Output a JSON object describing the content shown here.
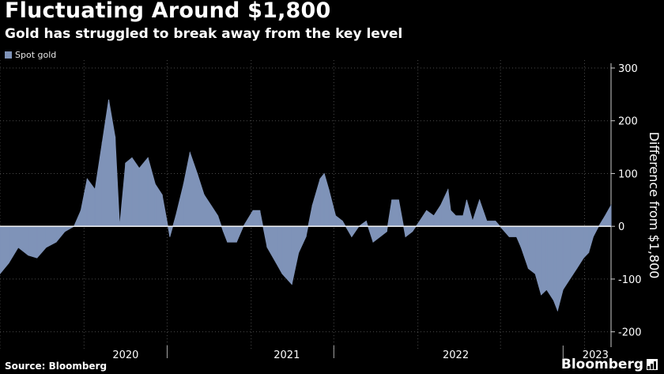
{
  "title": "Fluctuating Around $1,800",
  "subtitle": "Gold has struggled to break away from the key level",
  "source": "Source: Bloomberg",
  "brand": "Bloomberg",
  "colors": {
    "series": "#7f93b8",
    "background": "#000000",
    "grid": "#4a4a4a",
    "text": "#ffffff"
  },
  "chart_data": {
    "type": "area",
    "title": "Fluctuating Around $1,800",
    "subtitle": "Gold has struggled to break away from the key level",
    "ylabel": "Difference from $1,800",
    "ylim": [
      -220,
      300
    ],
    "yticks": [
      300,
      200,
      100,
      0,
      -100,
      -200
    ],
    "xlim": [
      "2019-07-01",
      "2023-02-28"
    ],
    "xtick_labels": [
      "2020",
      "2021",
      "2022",
      "2023"
    ],
    "legend": "top-left",
    "grid": true,
    "series": [
      {
        "name": "Spot gold",
        "points": [
          [
            "2019-07-01",
            -90
          ],
          [
            "2019-07-20",
            -70
          ],
          [
            "2019-08-10",
            -40
          ],
          [
            "2019-09-01",
            -55
          ],
          [
            "2019-09-20",
            -60
          ],
          [
            "2019-10-10",
            -40
          ],
          [
            "2019-11-01",
            -30
          ],
          [
            "2019-11-20",
            -10
          ],
          [
            "2019-12-10",
            0
          ],
          [
            "2019-12-25",
            30
          ],
          [
            "2020-01-08",
            90
          ],
          [
            "2020-01-25",
            70
          ],
          [
            "2020-02-10",
            160
          ],
          [
            "2020-02-24",
            240
          ],
          [
            "2020-03-09",
            170
          ],
          [
            "2020-03-19",
            0
          ],
          [
            "2020-04-01",
            120
          ],
          [
            "2020-04-15",
            130
          ],
          [
            "2020-05-01",
            110
          ],
          [
            "2020-05-20",
            130
          ],
          [
            "2020-06-05",
            80
          ],
          [
            "2020-06-20",
            60
          ],
          [
            "2020-07-07",
            -20
          ],
          [
            "2020-07-20",
            20
          ],
          [
            "2020-08-06",
            80
          ],
          [
            "2020-08-20",
            140
          ],
          [
            "2020-09-05",
            100
          ],
          [
            "2020-09-20",
            60
          ],
          [
            "2020-10-05",
            40
          ],
          [
            "2020-10-20",
            20
          ],
          [
            "2020-11-01",
            -10
          ],
          [
            "2020-11-10",
            -30
          ],
          [
            "2020-11-30",
            -30
          ],
          [
            "2020-12-15",
            0
          ],
          [
            "2021-01-05",
            30
          ],
          [
            "2021-01-20",
            30
          ],
          [
            "2021-02-05",
            -40
          ],
          [
            "2021-02-25",
            -70
          ],
          [
            "2021-03-10",
            -90
          ],
          [
            "2021-03-31",
            -110
          ],
          [
            "2021-04-15",
            -50
          ],
          [
            "2021-05-01",
            -20
          ],
          [
            "2021-05-15",
            40
          ],
          [
            "2021-06-01",
            90
          ],
          [
            "2021-06-10",
            100
          ],
          [
            "2021-06-20",
            70
          ],
          [
            "2021-07-05",
            20
          ],
          [
            "2021-07-20",
            10
          ],
          [
            "2021-08-09",
            -20
          ],
          [
            "2021-08-25",
            0
          ],
          [
            "2021-09-10",
            10
          ],
          [
            "2021-09-25",
            -30
          ],
          [
            "2021-10-10",
            -20
          ],
          [
            "2021-10-25",
            -10
          ],
          [
            "2021-11-05",
            50
          ],
          [
            "2021-11-20",
            50
          ],
          [
            "2021-12-05",
            -20
          ],
          [
            "2021-12-20",
            -10
          ],
          [
            "2022-01-05",
            10
          ],
          [
            "2022-01-20",
            30
          ],
          [
            "2022-02-05",
            20
          ],
          [
            "2022-02-20",
            40
          ],
          [
            "2022-03-08",
            70
          ],
          [
            "2022-03-14",
            30
          ],
          [
            "2022-03-25",
            20
          ],
          [
            "2022-04-10",
            20
          ],
          [
            "2022-04-18",
            50
          ],
          [
            "2022-05-01",
            10
          ],
          [
            "2022-05-16",
            50
          ],
          [
            "2022-06-01",
            10
          ],
          [
            "2022-06-20",
            10
          ],
          [
            "2022-07-10",
            -10
          ],
          [
            "2022-07-20",
            -20
          ],
          [
            "2022-08-05",
            -20
          ],
          [
            "2022-08-15",
            -40
          ],
          [
            "2022-08-31",
            -80
          ],
          [
            "2022-09-15",
            -90
          ],
          [
            "2022-09-28",
            -130
          ],
          [
            "2022-10-10",
            -120
          ],
          [
            "2022-10-25",
            -140
          ],
          [
            "2022-11-03",
            -160
          ],
          [
            "2022-11-15",
            -120
          ],
          [
            "2022-11-30",
            -100
          ],
          [
            "2022-12-15",
            -80
          ],
          [
            "2022-12-30",
            -60
          ],
          [
            "2023-01-10",
            -50
          ],
          [
            "2023-01-20",
            -20
          ],
          [
            "2023-02-01",
            0
          ],
          [
            "2023-02-15",
            20
          ],
          [
            "2023-02-28",
            40
          ]
        ]
      }
    ]
  }
}
